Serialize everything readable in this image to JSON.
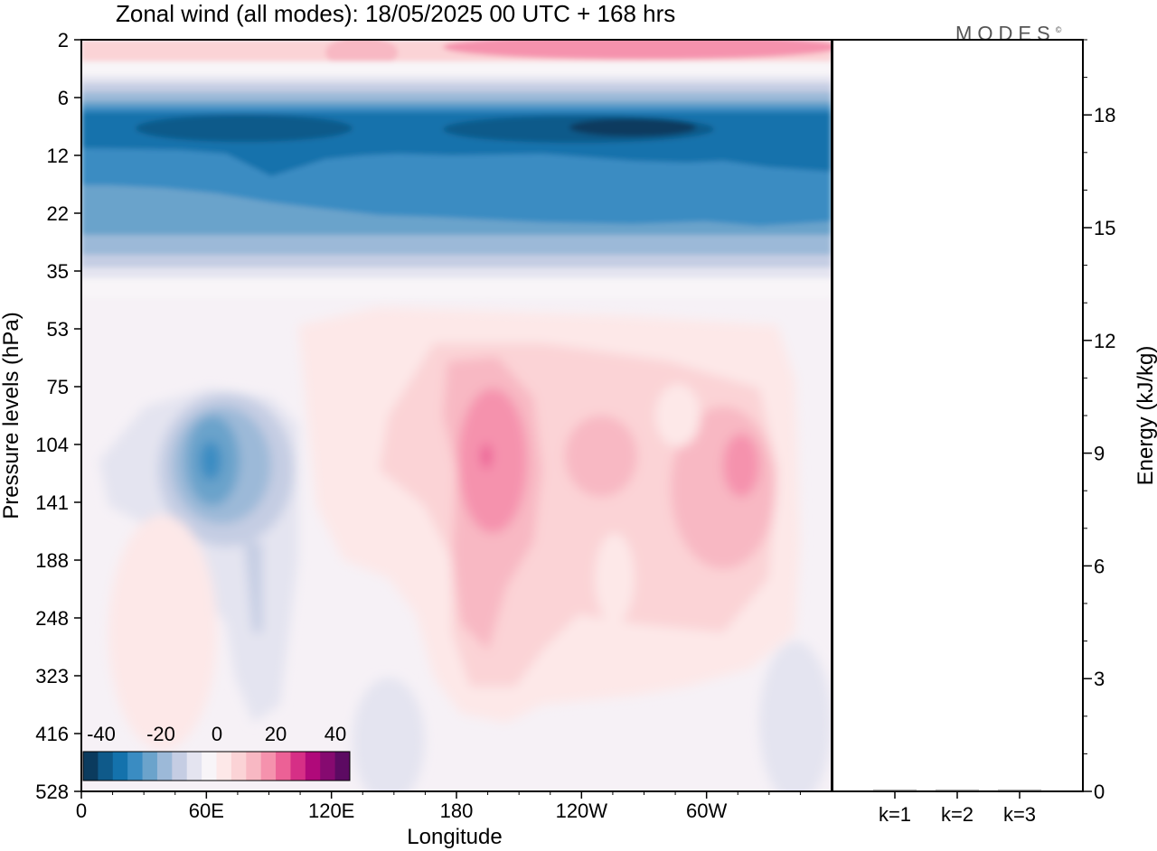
{
  "title": "Zonal wind (all modes):  18/05/2025  00 UTC  + 168 hrs",
  "logo": "MODES",
  "logo_mark": "©",
  "colors": {
    "scale": [
      "#0b3b5e",
      "#0f5a8a",
      "#1472ac",
      "#3a8cc2",
      "#6ba3cb",
      "#9cb9d8",
      "#c5cde3",
      "#e4e4f0",
      "#f8f5f8",
      "#fde8e8",
      "#fbd3d6",
      "#f8b8c3",
      "#f592ad",
      "#ec6196",
      "#d62f86",
      "#b0097a",
      "#860a70",
      "#5c0a62"
    ],
    "frame": "#000000"
  },
  "chart_data": [
    {
      "type": "heatmap",
      "xlabel": "Longitude",
      "ylabel": "Pressure levels (hPa)",
      "x_ticks": [
        "0",
        "60E",
        "120E",
        "180",
        "120W",
        "60W"
      ],
      "y_ticks": [
        "2",
        "6",
        "12",
        "22",
        "35",
        "53",
        "75",
        "104",
        "141",
        "188",
        "248",
        "323",
        "416",
        "528"
      ],
      "colorbar": {
        "labels": [
          "-40",
          "-20",
          "0",
          "20",
          "40"
        ],
        "range": [
          -40,
          40
        ]
      },
      "features": [
        {
          "description": "easterly jet",
          "lon_range": [
            20,
            330
          ],
          "p_range": [
            6,
            22
          ],
          "min_value": -40
        },
        {
          "description": "westerly upper layer",
          "lon_range": [
            0,
            360
          ],
          "p_range": [
            2,
            4
          ],
          "max_value": 20
        },
        {
          "description": "easterly core",
          "lon": 62,
          "p": 120,
          "value": -25
        },
        {
          "description": "westerly core",
          "lon": 195,
          "p": 125,
          "value": 20
        },
        {
          "description": "westerly core",
          "lon": 245,
          "p": 120,
          "value": 12
        },
        {
          "description": "westerly core",
          "lon": 315,
          "p": 120,
          "value": 14
        }
      ]
    },
    {
      "type": "bar",
      "categories": [
        "k=1",
        "k=2",
        "k=3"
      ],
      "values": [
        0.02,
        0.02,
        0.02
      ],
      "ylabel": "Energy (kJ/kg)",
      "y_ticks": [
        "0",
        "3",
        "6",
        "9",
        "12",
        "15",
        "18"
      ],
      "ylim": [
        0,
        20
      ]
    }
  ]
}
